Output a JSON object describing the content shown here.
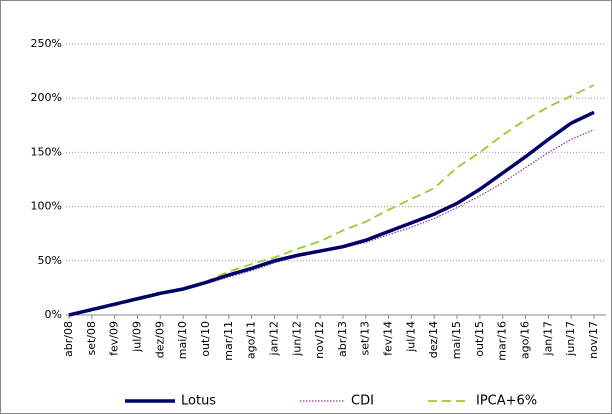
{
  "chart_data": {
    "type": "line",
    "categories": [
      "abr/08",
      "set/08",
      "fev/09",
      "jul/09",
      "dez/09",
      "mai/10",
      "out/10",
      "mar/11",
      "ago/11",
      "jan/12",
      "jun/12",
      "nov/12",
      "abr/13",
      "set/13",
      "fev/14",
      "jul/14",
      "dez/14",
      "mai/15",
      "out/15",
      "mar/16",
      "ago/16",
      "jan/17",
      "jun/17",
      "nov/17"
    ],
    "series": [
      {
        "name": "Lotus",
        "color": "#000066",
        "line_style": "solid",
        "width": 3.5,
        "values": [
          0,
          5,
          10,
          15,
          20,
          24,
          30,
          37,
          43,
          50,
          55,
          59,
          63,
          69,
          77,
          85,
          93,
          103,
          116,
          131,
          146,
          162,
          177,
          187
        ]
      },
      {
        "name": "CDI",
        "color": "#993399",
        "line_style": "dotted",
        "width": 1.2,
        "values": [
          0,
          5,
          10,
          15,
          19,
          23,
          29,
          35,
          41,
          48,
          54,
          58,
          62,
          67,
          74,
          81,
          89,
          99,
          110,
          122,
          136,
          150,
          162,
          171
        ]
      },
      {
        "name": "IPCA+6%",
        "color": "#99cc33",
        "line_style": "dashed",
        "width": 1.8,
        "values": [
          0,
          4,
          9,
          14,
          19,
          24,
          31,
          40,
          47,
          53,
          61,
          68,
          78,
          86,
          97,
          107,
          117,
          136,
          150,
          166,
          180,
          192,
          202,
          212
        ]
      }
    ],
    "ylim": [
      0,
      250
    ],
    "yticks": [
      {
        "value": 0,
        "label": "0%"
      },
      {
        "value": 50,
        "label": "50%"
      },
      {
        "value": 100,
        "label": "100%"
      },
      {
        "value": 150,
        "label": "150%"
      },
      {
        "value": 200,
        "label": "200%"
      },
      {
        "value": 250,
        "label": "250%"
      }
    ],
    "grid": true,
    "legend": "bottom"
  }
}
